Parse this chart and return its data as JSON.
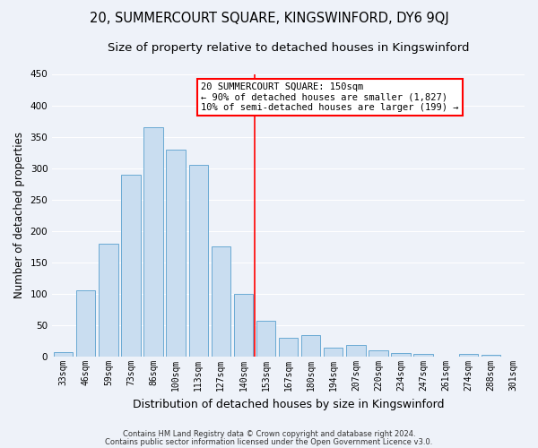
{
  "title": "20, SUMMERCOURT SQUARE, KINGSWINFORD, DY6 9QJ",
  "subtitle": "Size of property relative to detached houses in Kingswinford",
  "xlabel": "Distribution of detached houses by size in Kingswinford",
  "ylabel": "Number of detached properties",
  "bar_labels": [
    "33sqm",
    "46sqm",
    "59sqm",
    "73sqm",
    "86sqm",
    "100sqm",
    "113sqm",
    "127sqm",
    "140sqm",
    "153sqm",
    "167sqm",
    "180sqm",
    "194sqm",
    "207sqm",
    "220sqm",
    "234sqm",
    "247sqm",
    "261sqm",
    "274sqm",
    "288sqm",
    "301sqm"
  ],
  "bar_values": [
    8,
    105,
    180,
    290,
    365,
    330,
    305,
    175,
    100,
    57,
    30,
    35,
    15,
    19,
    10,
    6,
    5,
    0,
    4,
    3,
    0
  ],
  "bar_color": "#c9ddf0",
  "bar_edge_color": "#6aaad4",
  "annotation_line1": "20 SUMMERCOURT SQUARE: 150sqm",
  "annotation_line2": "← 90% of detached houses are smaller (1,827)",
  "annotation_line3": "10% of semi-detached houses are larger (199) →",
  "footnote1": "Contains HM Land Registry data © Crown copyright and database right 2024.",
  "footnote2": "Contains public sector information licensed under the Open Government Licence v3.0.",
  "ylim": [
    0,
    450
  ],
  "yticks": [
    0,
    50,
    100,
    150,
    200,
    250,
    300,
    350,
    400,
    450
  ],
  "background_color": "#eef2f9",
  "grid_color": "#ffffff",
  "title_fontsize": 10.5,
  "subtitle_fontsize": 9.5,
  "xlabel_fontsize": 9,
  "ylabel_fontsize": 8.5,
  "tick_fontsize": 7,
  "annotation_fontsize": 7.5,
  "footnote_fontsize": 6
}
